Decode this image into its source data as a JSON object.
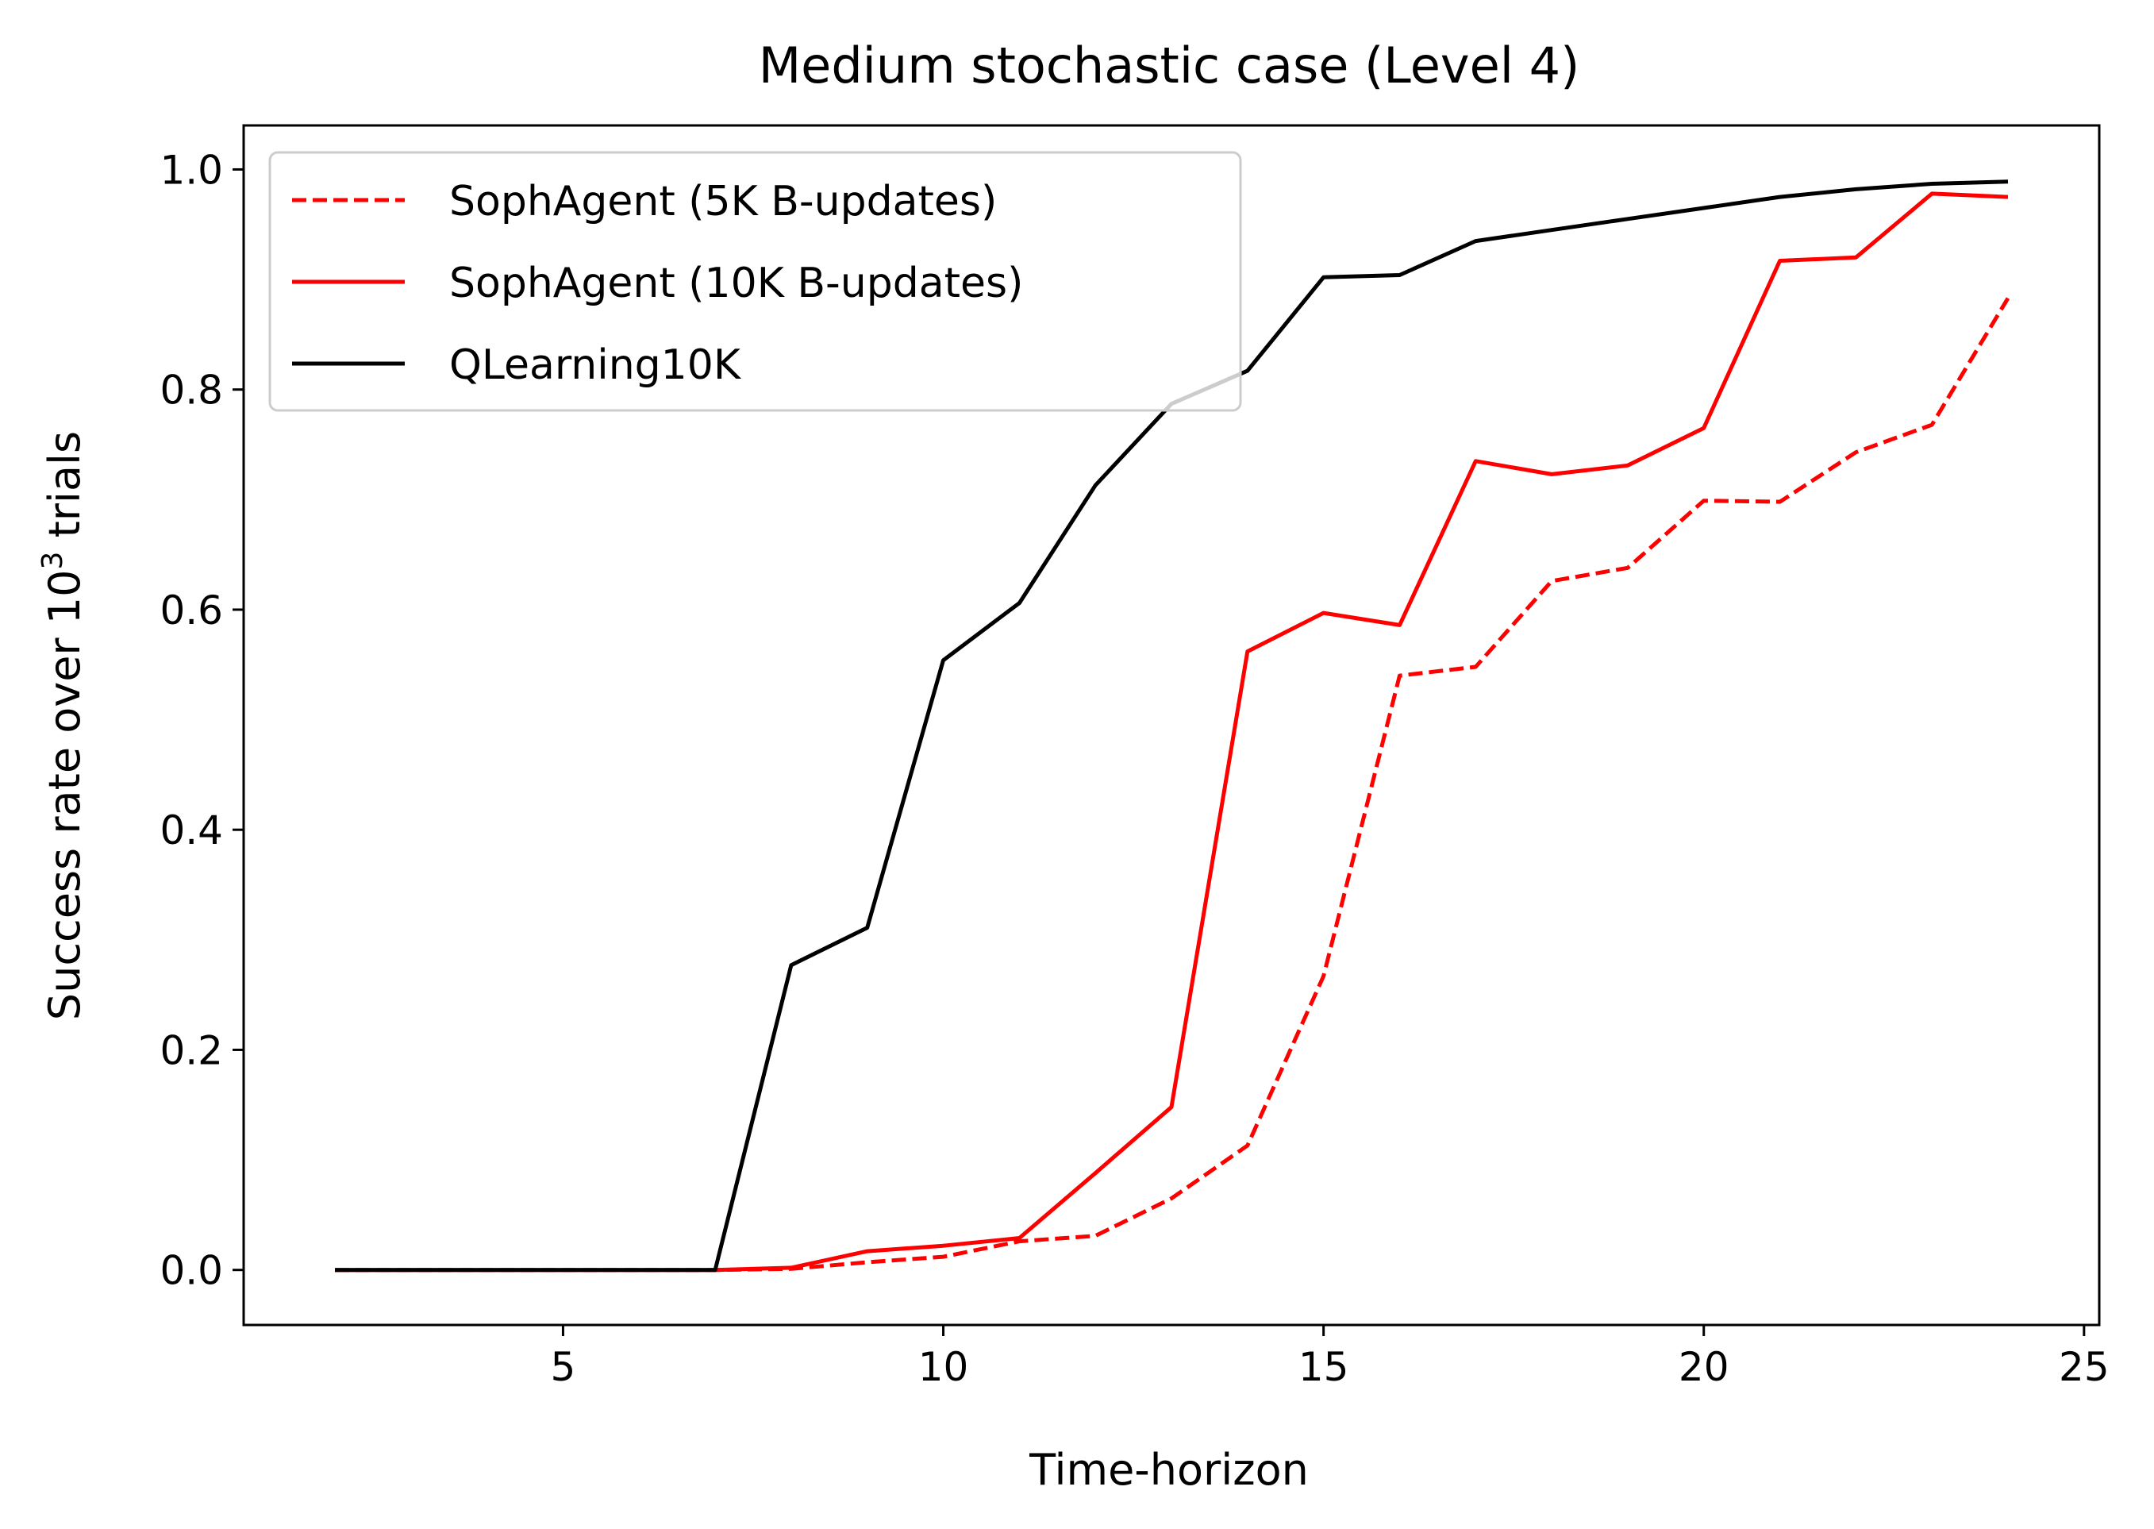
{
  "chart_data": {
    "type": "line",
    "title": "Medium stochastic case (Level 4)",
    "xlabel": "Time-horizon",
    "ylabel_prefix": "Success rate over 10",
    "ylabel_sup": "3",
    "ylabel_suffix": " trials",
    "xlim": [
      0.8,
      25.2
    ],
    "ylim": [
      -0.05,
      1.04
    ],
    "xticks": [
      5,
      10,
      15,
      20,
      25
    ],
    "xtick_labels": [
      "5",
      "10",
      "15",
      "20",
      "25"
    ],
    "yticks": [
      0.0,
      0.2,
      0.4,
      0.6,
      0.8,
      1.0
    ],
    "ytick_labels": [
      "0.0",
      "0.2",
      "0.4",
      "0.6",
      "0.8",
      "1.0"
    ],
    "grid": false,
    "legend_position": "top-left",
    "x": [
      2,
      3,
      4,
      5,
      6,
      7,
      8,
      9,
      10,
      11,
      12,
      13,
      14,
      15,
      16,
      17,
      18,
      19,
      20,
      21,
      22,
      23,
      24
    ],
    "series": [
      {
        "name": "SophAgent (5K B-updates)",
        "color": "#ff0000",
        "dash": "dashed",
        "values": [
          0,
          0,
          0,
          0,
          0,
          0,
          0.001,
          0.007,
          0.012,
          0.026,
          0.031,
          0.065,
          0.113,
          0.267,
          0.54,
          0.548,
          0.626,
          0.638,
          0.699,
          0.698,
          0.743,
          0.768,
          0.883
        ]
      },
      {
        "name": "SophAgent (10K B-updates)",
        "color": "#ff0000",
        "dash": "solid",
        "values": [
          0,
          0,
          0,
          0,
          0,
          0,
          0.002,
          0.017,
          0.022,
          0.029,
          0.088,
          0.148,
          0.562,
          0.597,
          0.586,
          0.735,
          0.723,
          0.731,
          0.765,
          0.917,
          0.92,
          0.978,
          0.975
        ]
      },
      {
        "name": "QLearning10K",
        "color": "#000000",
        "dash": "solid",
        "values": [
          0,
          0,
          0,
          0,
          0,
          0,
          0.277,
          0.311,
          0.554,
          0.606,
          0.713,
          0.787,
          0.817,
          0.902,
          0.904,
          0.935,
          0.945,
          0.955,
          0.965,
          0.975,
          0.982,
          0.987,
          0.989
        ]
      }
    ]
  }
}
